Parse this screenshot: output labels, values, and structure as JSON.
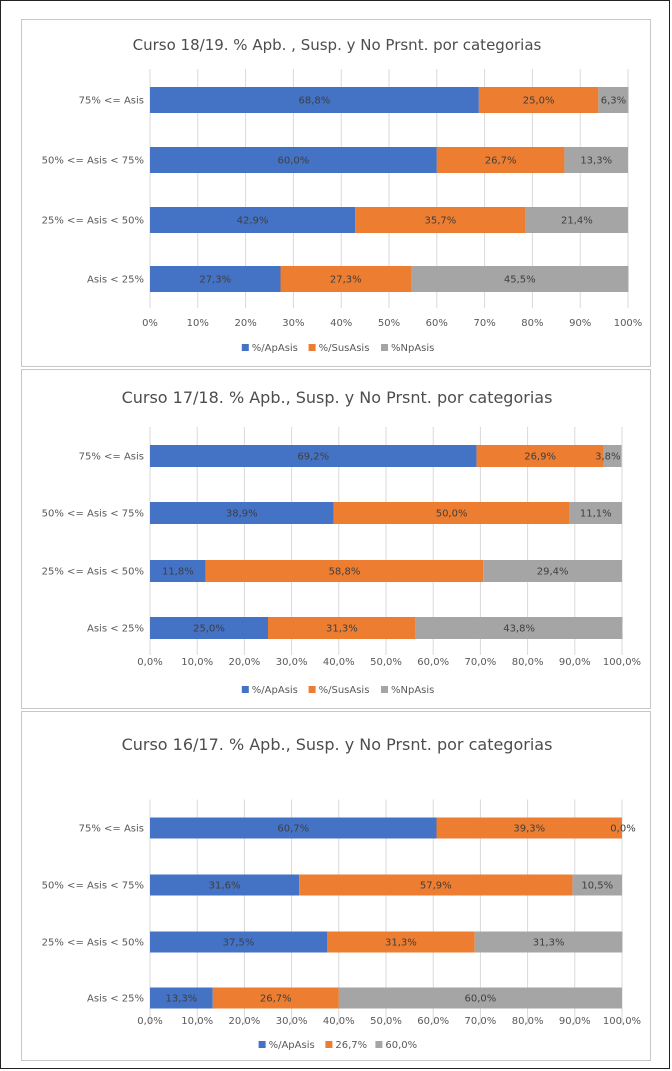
{
  "colors": {
    "ap": "#4472C4",
    "sus": "#ED7D31",
    "np": "#A5A5A5",
    "grid": "#d9d9d9"
  },
  "chart_data": [
    {
      "type": "bar",
      "orientation": "horizontal",
      "stacked": "100%",
      "title": "Curso 18/19. % Apb. , Susp. y  No Prsnt. por categorias",
      "categories": [
        "75% <= Asis",
        "50% <= Asis < 75%",
        "25% <= Asis < 50%",
        "Asis < 25%"
      ],
      "series": [
        {
          "name": "%/ApAsis",
          "values": [
            68.8,
            60.0,
            42.9,
            27.3
          ],
          "labels": [
            "68,8%",
            "60,0%",
            "42,9%",
            "27,3%"
          ]
        },
        {
          "name": "%/SusAsis",
          "values": [
            25.0,
            26.7,
            35.7,
            27.3
          ],
          "labels": [
            "25,0%",
            "26,7%",
            "35,7%",
            "27,3%"
          ]
        },
        {
          "name": "%NpAsis",
          "values": [
            6.3,
            13.3,
            21.4,
            45.5
          ],
          "labels": [
            "6,3%",
            "13,3%",
            "21,4%",
            "45,5%"
          ]
        }
      ],
      "xlim": [
        0,
        100
      ],
      "xticks": [
        "0%",
        "10%",
        "20%",
        "30%",
        "40%",
        "50%",
        "60%",
        "70%",
        "80%",
        "90%",
        "100%"
      ],
      "grid": true,
      "legend": "bottom"
    },
    {
      "type": "bar",
      "orientation": "horizontal",
      "stacked": "100%",
      "title": "Curso 17/18. % Apb., Susp. y No Prsnt. por categorias",
      "categories": [
        "75% <= Asis",
        "50% <= Asis < 75%",
        "25% <= Asis < 50%",
        "Asis < 25%"
      ],
      "series": [
        {
          "name": "%/ApAsis",
          "values": [
            69.2,
            38.9,
            11.8,
            25.0
          ],
          "labels": [
            "69,2%",
            "38,9%",
            "11,8%",
            "25,0%"
          ]
        },
        {
          "name": "%/SusAsis",
          "values": [
            26.9,
            50.0,
            58.8,
            31.3
          ],
          "labels": [
            "26,9%",
            "50,0%",
            "58,8%",
            "31,3%"
          ]
        },
        {
          "name": "%NpAsis",
          "values": [
            3.8,
            11.1,
            29.4,
            43.8
          ],
          "labels": [
            "3,8%",
            "11,1%",
            "29,4%",
            "43,8%"
          ]
        }
      ],
      "xlim": [
        0,
        100
      ],
      "xticks": [
        "0,0%",
        "10,0%",
        "20,0%",
        "30,0%",
        "40,0%",
        "50,0%",
        "60,0%",
        "70,0%",
        "80,0%",
        "90,0%",
        "100,0%"
      ],
      "grid": true,
      "legend": "bottom"
    },
    {
      "type": "bar",
      "orientation": "horizontal",
      "stacked": "100%",
      "title": "Curso 16/17. % Apb., Susp. y No Prsnt. por categorias",
      "categories": [
        "75% <= Asis",
        "50% <= Asis < 75%",
        "25% <= Asis < 50%",
        "Asis < 25%"
      ],
      "series": [
        {
          "name": "%/ApAsis",
          "values": [
            60.7,
            31.6,
            37.5,
            13.3
          ],
          "labels": [
            "60,7%",
            "31,6%",
            "37,5%",
            "13,3%"
          ]
        },
        {
          "name": "26,7%",
          "values": [
            39.3,
            57.9,
            31.3,
            26.7
          ],
          "labels": [
            "39,3%",
            "57,9%",
            "31,3%",
            "26,7%"
          ]
        },
        {
          "name": "60,0%",
          "values": [
            0.0,
            10.5,
            31.3,
            60.0
          ],
          "labels": [
            "0,0%",
            "10,5%",
            "31,3%",
            "60,0%"
          ]
        }
      ],
      "xlim": [
        0,
        100
      ],
      "xticks": [
        "0,0%",
        "10,0%",
        "20,0%",
        "30,0%",
        "40,0%",
        "50,0%",
        "60,0%",
        "70,0%",
        "80,0%",
        "90,0%",
        "100,0%"
      ],
      "grid": true,
      "legend": "bottom"
    }
  ]
}
